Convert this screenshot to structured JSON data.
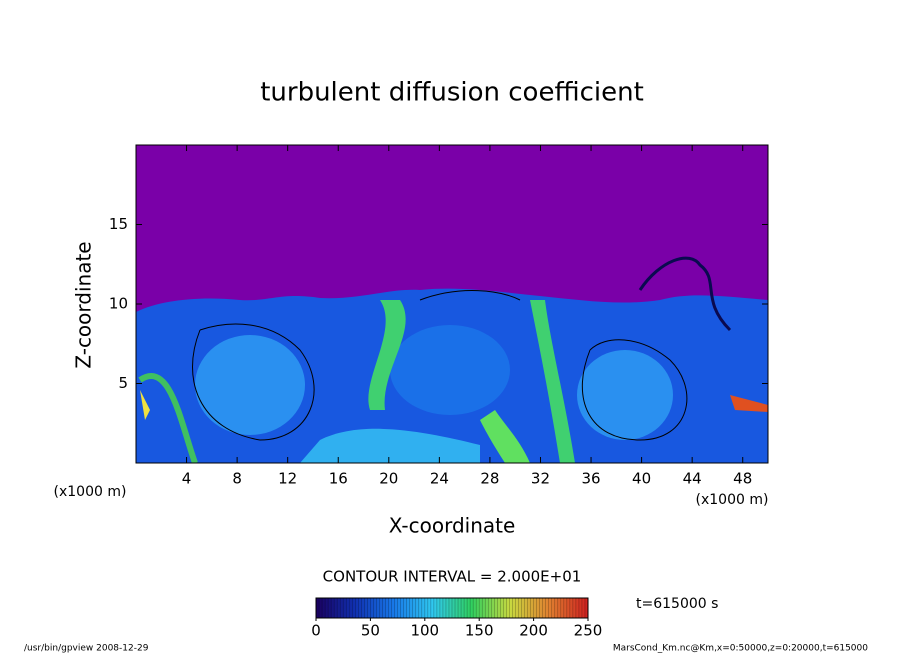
{
  "chart_data": {
    "type": "contour",
    "title": "turbulent diffusion coefficient",
    "x_label": "X-coordinate",
    "y_label": "Z-coordinate",
    "axis_unit": "(x1000 m)",
    "xlim": [
      0,
      50
    ],
    "xticks": [
      4,
      8,
      12,
      16,
      20,
      24,
      28,
      32,
      36,
      40,
      44,
      48
    ],
    "ylim": [
      0,
      20
    ],
    "yticks": [
      5,
      10,
      15
    ],
    "contour_interval": "CONTOUR INTERVAL = 2.000E+01",
    "colorbar": {
      "lim": [
        0,
        250
      ],
      "ticks": [
        0,
        50,
        100,
        150,
        200,
        250
      ],
      "colors": [
        "#1a0060",
        "#1030b0",
        "#1878e8",
        "#30c8f0",
        "#30d060",
        "#c8d840",
        "#e08030",
        "#d02020"
      ]
    },
    "time_label": "t=615000 s",
    "footer_left": "/usr/bin/gpview  2008-12-29",
    "footer_right": "MarsCond_Km.nc@Km,x=0:50000,z=0:20000,t=615000"
  }
}
